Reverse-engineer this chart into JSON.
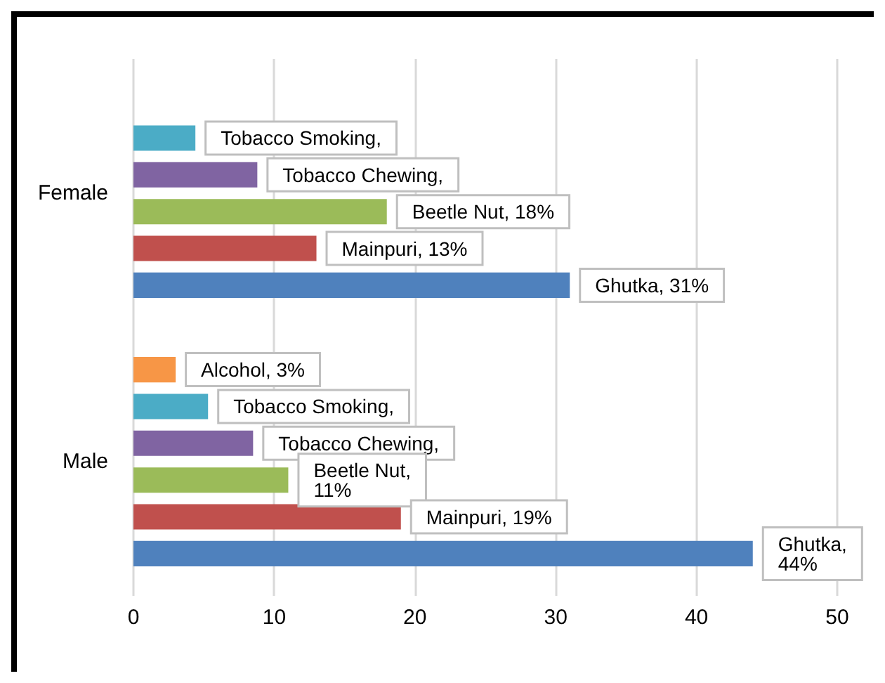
{
  "chart_data": {
    "type": "bar",
    "orientation": "horizontal",
    "categories": [
      "Female",
      "Male"
    ],
    "series": [
      {
        "color": "#f79646",
        "values": [
          null,
          3
        ],
        "value_labels": [
          null,
          "Alcohol, 3%"
        ]
      },
      {
        "color": "#4bacc6",
        "values": [
          4.4,
          5.3
        ],
        "value_labels": [
          "Tobacco Smoking,",
          "Tobacco Smoking,"
        ]
      },
      {
        "color": "#8064a2",
        "values": [
          8.8,
          8.5
        ],
        "value_labels": [
          "Tobacco Chewing,",
          "Tobacco Chewing,"
        ]
      },
      {
        "color": "#9bbb59",
        "values": [
          18,
          11
        ],
        "value_labels": [
          "Beetle Nut, 18%",
          "Beetle Nut,\n11%"
        ]
      },
      {
        "color": "#c0504d",
        "values": [
          13,
          19
        ],
        "value_labels": [
          "Mainpuri, 13%",
          "Mainpuri, 19%"
        ]
      },
      {
        "color": "#4f81bd",
        "values": [
          31,
          44
        ],
        "value_labels": [
          "Ghutka, 31%",
          "Ghutka,\n44%"
        ]
      }
    ],
    "xlim": [
      0,
      50
    ],
    "xticks": [
      0,
      10,
      20,
      30,
      40,
      50
    ],
    "grid": "x"
  }
}
